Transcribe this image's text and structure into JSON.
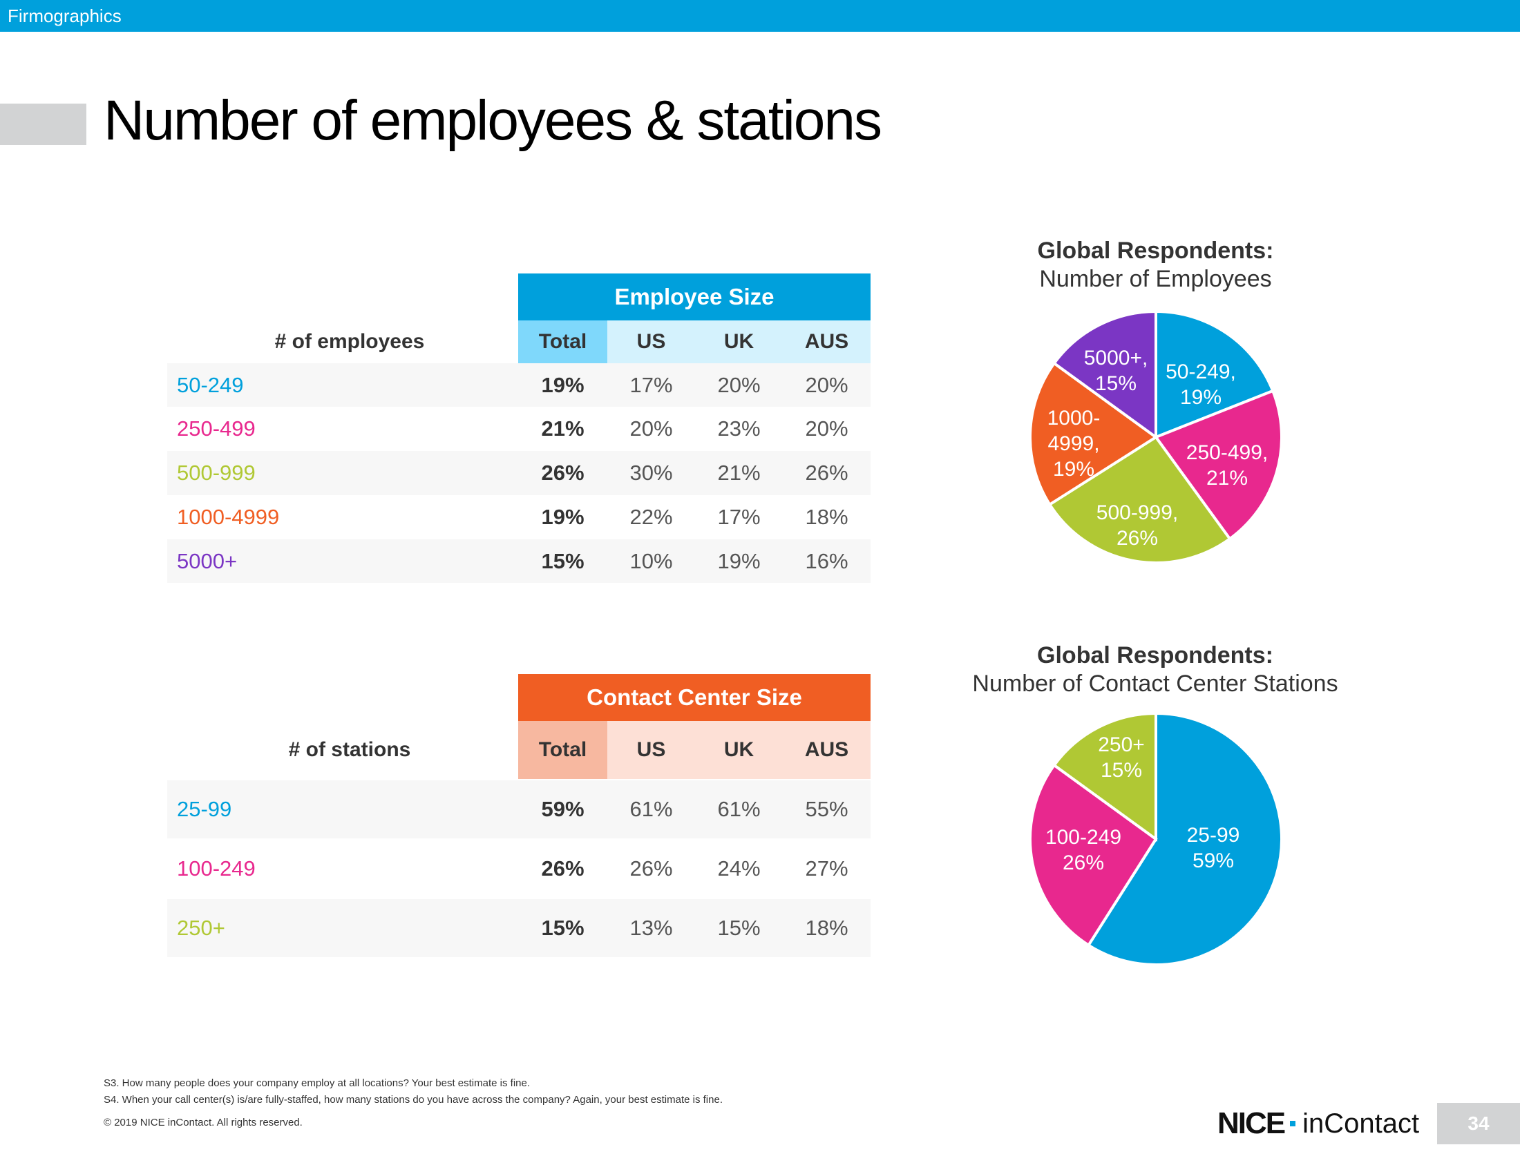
{
  "header": {
    "section": "Firmographics"
  },
  "page": {
    "title": "Number of employees & stations",
    "number": "34"
  },
  "colors": {
    "blue": "#00a0dc",
    "magenta": "#e8288e",
    "green": "#b0c834",
    "orange": "#f05e23",
    "purple": "#7b36c4",
    "employee_header": "#00a0dc",
    "employee_total_bg": "#7fd8fb",
    "employee_colhdr_bg": "#d4f2fd",
    "contact_header": "#f05e23",
    "contact_total_bg": "#f7b8a0",
    "contact_colhdr_bg": "#fde0d6"
  },
  "employee_table": {
    "header": "Employee Size",
    "row_label_header": "# of employees",
    "columns": [
      "Total",
      "US",
      "UK",
      "AUS"
    ],
    "rows": [
      {
        "label": "50-249",
        "color": "#00a0dc",
        "values": [
          "19%",
          "17%",
          "20%",
          "20%"
        ]
      },
      {
        "label": "250-499",
        "color": "#e8288e",
        "values": [
          "21%",
          "20%",
          "23%",
          "20%"
        ]
      },
      {
        "label": "500-999",
        "color": "#b0c834",
        "values": [
          "26%",
          "30%",
          "21%",
          "26%"
        ]
      },
      {
        "label": "1000-4999",
        "color": "#f05e23",
        "values": [
          "19%",
          "22%",
          "17%",
          "18%"
        ]
      },
      {
        "label": "5000+",
        "color": "#7b36c4",
        "values": [
          "15%",
          "10%",
          "19%",
          "16%"
        ]
      }
    ]
  },
  "stations_table": {
    "header": "Contact Center Size",
    "row_label_header": "# of stations",
    "columns": [
      "Total",
      "US",
      "UK",
      "AUS"
    ],
    "rows": [
      {
        "label": "25-99",
        "color": "#00a0dc",
        "values": [
          "59%",
          "61%",
          "61%",
          "55%"
        ]
      },
      {
        "label": "100-249",
        "color": "#e8288e",
        "values": [
          "26%",
          "26%",
          "24%",
          "27%"
        ]
      },
      {
        "label": "250+",
        "color": "#b0c834",
        "values": [
          "15%",
          "13%",
          "15%",
          "18%"
        ]
      }
    ]
  },
  "chart_data": [
    {
      "type": "pie",
      "title": "Global Respondents:",
      "subtitle": "Number of Employees",
      "slices": [
        {
          "label": "50-249",
          "value": 19,
          "color": "#00a0dc",
          "text": [
            "50-249,",
            "19%"
          ]
        },
        {
          "label": "250-499",
          "value": 21,
          "color": "#e8288e",
          "text": [
            "250-499,",
            "21%"
          ]
        },
        {
          "label": "500-999",
          "value": 26,
          "color": "#b0c834",
          "text": [
            "500-999,",
            "26%"
          ]
        },
        {
          "label": "1000-4999",
          "value": 19,
          "color": "#f05e23",
          "text": [
            "1000-",
            "4999,",
            "19%"
          ]
        },
        {
          "label": "5000+",
          "value": 15,
          "color": "#7b36c4",
          "text": [
            "5000+,",
            "15%"
          ]
        }
      ]
    },
    {
      "type": "pie",
      "title": "Global Respondents:",
      "subtitle": "Number of Contact Center Stations",
      "slices": [
        {
          "label": "25-99",
          "value": 59,
          "color": "#00a0dc",
          "text": [
            "25-99",
            "59%"
          ]
        },
        {
          "label": "100-249",
          "value": 26,
          "color": "#e8288e",
          "text": [
            "100-249",
            "26%"
          ]
        },
        {
          "label": "250+",
          "value": 15,
          "color": "#b0c834",
          "text": [
            "250+",
            "15%"
          ]
        }
      ]
    }
  ],
  "footnotes": {
    "s3": "S3. How many people does your company employ at all locations? Your best estimate is fine.",
    "s4": "S4. When your call center(s) is/are fully-staffed, how many stations do you have across the company?  Again, your best estimate is fine.",
    "copyright": "© 2019 NICE inContact. All rights reserved."
  },
  "logo": {
    "brand": "NICE",
    "product": "inContact"
  }
}
